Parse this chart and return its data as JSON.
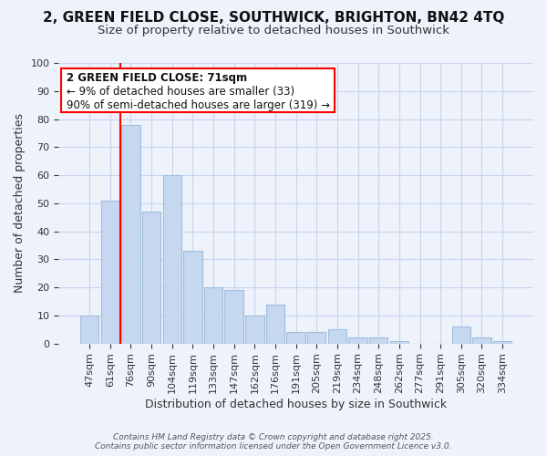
{
  "title": "2, GREEN FIELD CLOSE, SOUTHWICK, BRIGHTON, BN42 4TQ",
  "subtitle": "Size of property relative to detached houses in Southwick",
  "xlabel": "Distribution of detached houses by size in Southwick",
  "ylabel": "Number of detached properties",
  "bar_labels": [
    "47sqm",
    "61sqm",
    "76sqm",
    "90sqm",
    "104sqm",
    "119sqm",
    "133sqm",
    "147sqm",
    "162sqm",
    "176sqm",
    "191sqm",
    "205sqm",
    "219sqm",
    "234sqm",
    "248sqm",
    "262sqm",
    "277sqm",
    "291sqm",
    "305sqm",
    "320sqm",
    "334sqm"
  ],
  "bar_values": [
    10,
    51,
    78,
    47,
    60,
    33,
    20,
    19,
    10,
    14,
    4,
    4,
    5,
    2,
    2,
    1,
    0,
    0,
    6,
    2,
    1
  ],
  "bar_color": "#c5d8f0",
  "bar_edge_color": "#a0bedd",
  "ylim": [
    0,
    100
  ],
  "yticks": [
    0,
    10,
    20,
    30,
    40,
    50,
    60,
    70,
    80,
    90,
    100
  ],
  "red_line_x": 1.5,
  "annotation_title": "2 GREEN FIELD CLOSE: 71sqm",
  "annotation_line2": "← 9% of detached houses are smaller (33)",
  "annotation_line3": "90% of semi-detached houses are larger (319) →",
  "footer1": "Contains HM Land Registry data © Crown copyright and database right 2025.",
  "footer2": "Contains public sector information licensed under the Open Government Licence v3.0.",
  "background_color": "#eef2fb",
  "grid_color": "#c8d4ee",
  "title_fontsize": 11,
  "subtitle_fontsize": 9.5,
  "axis_label_fontsize": 9,
  "tick_fontsize": 8
}
